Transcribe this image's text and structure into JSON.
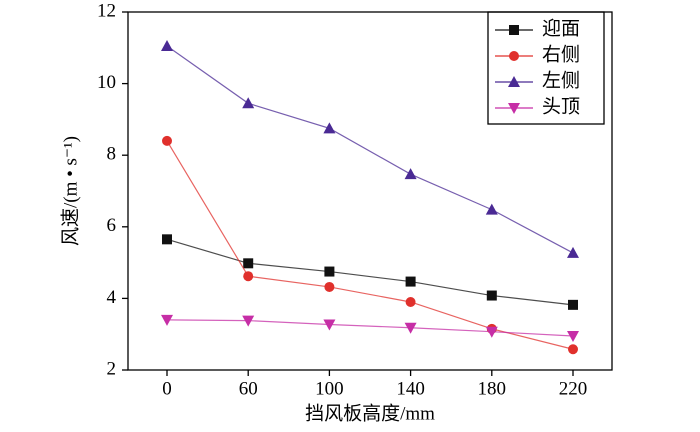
{
  "chart_data": {
    "type": "line",
    "x_label": "挡风板高度/mm",
    "y_label": "风速/(m • s⁻¹)",
    "categories": [
      "0",
      "60",
      "100",
      "140",
      "180",
      "220"
    ],
    "ylim": [
      2,
      12
    ],
    "yticks": [
      2,
      4,
      6,
      8,
      10,
      12
    ],
    "legend": "upper right",
    "series": [
      {
        "name": "迎面",
        "color": "#111111",
        "marker": "square",
        "values": [
          5.65,
          4.98,
          4.75,
          4.47,
          4.08,
          3.82
        ]
      },
      {
        "name": "右侧",
        "color": "#e0302c",
        "marker": "circle",
        "values": [
          8.4,
          4.62,
          4.32,
          3.9,
          3.15,
          2.58
        ]
      },
      {
        "name": "左侧",
        "color": "#4a2a94",
        "marker": "triangle-up",
        "values": [
          11.05,
          9.45,
          8.75,
          7.47,
          6.48,
          5.27
        ]
      },
      {
        "name": "头顶",
        "color": "#c62ea6",
        "marker": "triangle-down",
        "values": [
          3.4,
          3.38,
          3.27,
          3.18,
          3.07,
          2.95
        ]
      }
    ]
  }
}
